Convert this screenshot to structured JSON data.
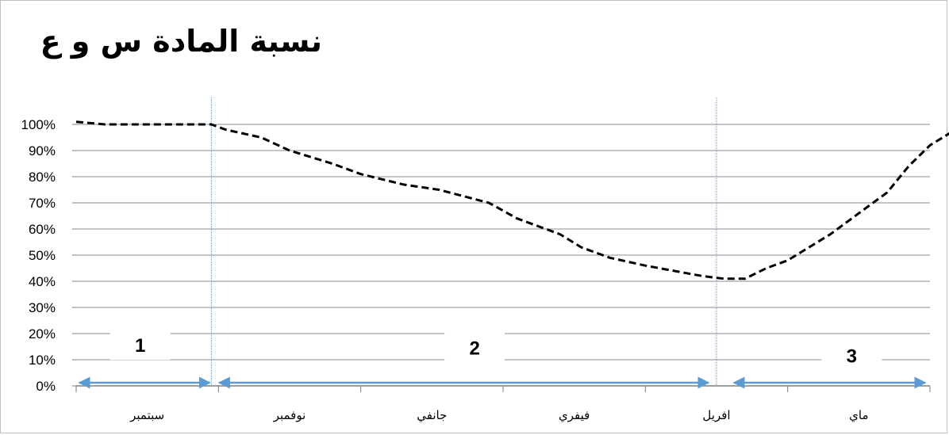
{
  "chart_data": {
    "type": "line",
    "title": "نسبة المادة س و ع",
    "xlabel": "",
    "ylabel": "",
    "categories": [
      "سبتمبر",
      "نوفمبر",
      "جانفي",
      "فيفري",
      "افريل",
      "ماي"
    ],
    "ylim": [
      0,
      1
    ],
    "yticks": [
      "0%",
      "10%",
      "20%",
      "30%",
      "40%",
      "50%",
      "60%",
      "70%",
      "80%",
      "90%",
      "100%"
    ],
    "yticks_values": [
      0,
      0.1,
      0.2,
      0.3,
      0.4,
      0.5,
      0.6,
      0.7,
      0.8,
      0.9,
      1.0
    ],
    "grid": true,
    "series": [
      {
        "line_style": "dashed",
        "color": "#000000",
        "x": [
          0.0,
          0.2,
          0.5,
          0.8,
          0.95,
          1.05,
          1.3,
          1.5,
          1.8,
          2.0,
          2.3,
          2.55,
          2.9,
          3.1,
          3.4,
          3.55,
          3.75,
          4.0,
          4.4,
          4.55,
          4.7,
          4.85,
          5.0,
          5.15,
          5.3,
          5.5,
          5.7,
          5.85,
          6.0,
          6.15
        ],
        "y": [
          1.01,
          1.0,
          1.0,
          1.0,
          1.0,
          0.98,
          0.95,
          0.9,
          0.85,
          0.81,
          0.77,
          0.75,
          0.7,
          0.64,
          0.58,
          0.53,
          0.49,
          0.46,
          0.42,
          0.41,
          0.41,
          0.45,
          0.48,
          0.53,
          0.58,
          0.66,
          0.74,
          0.84,
          0.92,
          0.97
        ]
      }
    ],
    "annotations": [
      {
        "label": "1",
        "x": 0.45,
        "y": 0.13
      },
      {
        "label": "2",
        "x": 2.8,
        "y": 0.12
      },
      {
        "label": "3",
        "x": 5.45,
        "y": 0.09
      }
    ],
    "phase_boundaries_x": [
      0.95,
      4.5
    ],
    "arrow_color": "#5b9bd5",
    "boundary_color": "#5b9bd5"
  }
}
